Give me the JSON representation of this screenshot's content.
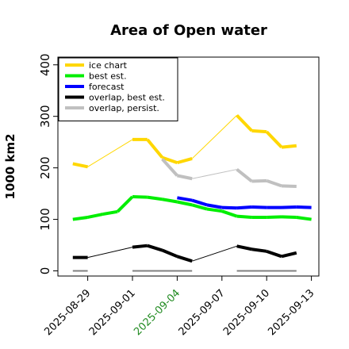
{
  "chart_data": {
    "type": "line",
    "title": "Area of Open water",
    "ylabel": "1000 km2",
    "xlabel": "",
    "ylim": [
      -10,
      415
    ],
    "yticks": [
      0,
      100,
      200,
      300,
      400
    ],
    "xlim": [
      "2025-08-27",
      "2025-09-13.5"
    ],
    "xticks": [
      {
        "date": "2025-08-29",
        "label": "2025-08-29",
        "color": "#000000"
      },
      {
        "date": "2025-09-01",
        "label": "2025-09-01",
        "color": "#000000"
      },
      {
        "date": "2025-09-04",
        "label": "2025-09-04",
        "color": "#228b22"
      },
      {
        "date": "2025-09-07",
        "label": "2025-09-07",
        "color": "#000000"
      },
      {
        "date": "2025-09-10",
        "label": "2025-09-10",
        "color": "#000000"
      },
      {
        "date": "2025-09-13",
        "label": "2025-09-13",
        "color": "#000000"
      }
    ],
    "legend_position": "top-left",
    "series": [
      {
        "name": "ice chart",
        "color": "#ffd700",
        "x": [
          "2025-08-28",
          "2025-08-29",
          "2025-09-01",
          "2025-09-02",
          "2025-09-03",
          "2025-09-04",
          "2025-09-05",
          "2025-09-08",
          "2025-09-09",
          "2025-09-10",
          "2025-09-11",
          "2025-09-12"
        ],
        "y": [
          208,
          202,
          255,
          255,
          220,
          210,
          218,
          302,
          272,
          270,
          240,
          243
        ],
        "segments": [
          [
            0,
            1,
            "thick"
          ],
          [
            1,
            2,
            "thin"
          ],
          [
            2,
            3,
            "thick"
          ],
          [
            3,
            4,
            "thick"
          ],
          [
            4,
            5,
            "thick"
          ],
          [
            5,
            6,
            "thick"
          ],
          [
            6,
            7,
            "thin"
          ],
          [
            7,
            8,
            "thick"
          ],
          [
            8,
            9,
            "thick"
          ],
          [
            9,
            10,
            "thick"
          ],
          [
            10,
            11,
            "thick"
          ]
        ]
      },
      {
        "name": "best est.",
        "color": "#00ee00",
        "x": [
          "2025-08-28",
          "2025-08-29",
          "2025-08-30",
          "2025-08-31",
          "2025-09-01",
          "2025-09-02",
          "2025-09-03",
          "2025-09-04",
          "2025-09-05",
          "2025-09-06",
          "2025-09-07",
          "2025-09-08",
          "2025-09-09",
          "2025-09-10",
          "2025-09-11",
          "2025-09-12",
          "2025-09-13"
        ],
        "y": [
          100,
          104,
          110,
          115,
          144,
          143,
          139,
          134,
          128,
          120,
          116,
          106,
          104,
          104,
          105,
          104,
          100
        ],
        "segments": "thick"
      },
      {
        "name": "forecast",
        "color": "#0000ff",
        "x": [
          "2025-09-04",
          "2025-09-05",
          "2025-09-06",
          "2025-09-07",
          "2025-09-08",
          "2025-09-09",
          "2025-09-10",
          "2025-09-11",
          "2025-09-12",
          "2025-09-13"
        ],
        "y": [
          142,
          137,
          128,
          123,
          122,
          124,
          123,
          123,
          124,
          123
        ],
        "segments": "thick"
      },
      {
        "name": "overlap, best est.",
        "color": "#000000",
        "x": [
          "2025-08-28",
          "2025-08-29",
          "2025-09-01",
          "2025-09-02",
          "2025-09-03",
          "2025-09-04",
          "2025-09-05",
          "2025-09-08",
          "2025-09-09",
          "2025-09-10",
          "2025-09-11",
          "2025-09-12"
        ],
        "y": [
          26,
          26,
          46,
          49,
          40,
          28,
          19,
          48,
          42,
          38,
          28,
          35
        ],
        "segments": [
          [
            0,
            1,
            "thick"
          ],
          [
            1,
            2,
            "thin"
          ],
          [
            2,
            3,
            "thick"
          ],
          [
            3,
            4,
            "thick"
          ],
          [
            4,
            5,
            "thick"
          ],
          [
            5,
            6,
            "thick"
          ],
          [
            6,
            7,
            "thin"
          ],
          [
            7,
            8,
            "thick"
          ],
          [
            8,
            9,
            "thick"
          ],
          [
            9,
            10,
            "thick"
          ],
          [
            10,
            11,
            "thick"
          ]
        ]
      },
      {
        "name": "overlap, persist.",
        "color": "#c0c0c0",
        "x": [
          "2025-09-03",
          "2025-09-04",
          "2025-09-05",
          "2025-09-08",
          "2025-09-09",
          "2025-09-10",
          "2025-09-11",
          "2025-09-12"
        ],
        "y": [
          217,
          185,
          179,
          197,
          174,
          175,
          165,
          164
        ],
        "segments": [
          [
            0,
            1,
            "thick"
          ],
          [
            1,
            2,
            "thick"
          ],
          [
            2,
            3,
            "thin"
          ],
          [
            3,
            4,
            "thick"
          ],
          [
            4,
            5,
            "thick"
          ],
          [
            5,
            6,
            "thick"
          ],
          [
            6,
            7,
            "thick"
          ]
        ]
      },
      {
        "color": "#808080",
        "legend": false,
        "x": [
          "2025-08-28",
          "2025-08-29",
          "2025-09-01",
          "2025-09-05",
          "2025-09-08",
          "2025-09-12"
        ],
        "y": [
          0,
          0,
          0,
          0,
          0,
          0
        ],
        "segments": [
          [
            0,
            1,
            "thin2"
          ],
          [
            2,
            3,
            "thin2"
          ],
          [
            4,
            5,
            "thin2"
          ]
        ]
      }
    ]
  }
}
